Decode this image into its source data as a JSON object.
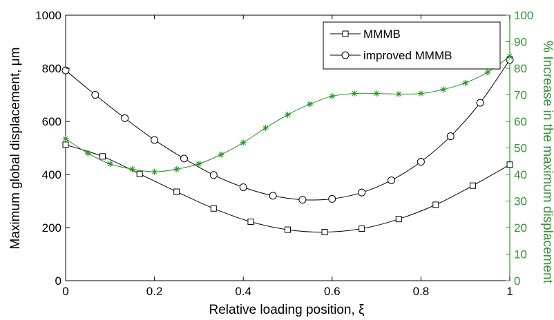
{
  "chart_data": {
    "type": "line",
    "xlabel": "Relative loading position, ξ",
    "ylabel": "Maximum global displacement, μm",
    "y2label": "% Increase in the maximum displacement",
    "xlim": [
      0,
      1
    ],
    "ylim": [
      0,
      1000
    ],
    "y2lim": [
      0,
      100
    ],
    "xticks": [
      "0",
      "0.2",
      "0.4",
      "0.6",
      "0.8",
      "1"
    ],
    "yticks": [
      "0",
      "200",
      "400",
      "600",
      "800",
      "1000"
    ],
    "y2ticks": [
      "0",
      "10",
      "20",
      "30",
      "40",
      "50",
      "60",
      "70",
      "80",
      "90",
      "100"
    ],
    "legend_position": "top-right",
    "series": [
      {
        "name": "MMMB",
        "marker": "square",
        "color": "#000000",
        "axis": "left",
        "x": [
          0,
          0.0833,
          0.1667,
          0.25,
          0.3333,
          0.4167,
          0.5,
          0.5833,
          0.6667,
          0.75,
          0.8333,
          0.9167,
          1.0
        ],
        "y": [
          512,
          468,
          402,
          335,
          272,
          222,
          192,
          183,
          196,
          232,
          286,
          358,
          437
        ]
      },
      {
        "name": "improved MMMB",
        "marker": "circle",
        "color": "#000000",
        "axis": "left",
        "x": [
          0,
          0.0667,
          0.1333,
          0.2,
          0.2667,
          0.3333,
          0.4,
          0.4667,
          0.5333,
          0.6,
          0.6667,
          0.7333,
          0.8,
          0.8667,
          0.9333,
          1.0
        ],
        "y": [
          792,
          700,
          612,
          530,
          460,
          398,
          352,
          320,
          305,
          308,
          332,
          378,
          448,
          544,
          670,
          832
        ]
      },
      {
        "marker": "asterisk",
        "color": "#1f9a1f",
        "axis": "right",
        "x": [
          0,
          0.05,
          0.1,
          0.15,
          0.2,
          0.25,
          0.3,
          0.35,
          0.4,
          0.45,
          0.5,
          0.55,
          0.6,
          0.65,
          0.7,
          0.75,
          0.8,
          0.85,
          0.9,
          0.95,
          1.0
        ],
        "y": [
          53.5,
          48,
          44,
          42,
          41,
          42,
          44,
          47.5,
          52,
          57.5,
          62.5,
          66.5,
          69.5,
          70.5,
          70.5,
          70.3,
          70.5,
          72,
          74.5,
          78.5,
          84.5
        ]
      }
    ]
  }
}
